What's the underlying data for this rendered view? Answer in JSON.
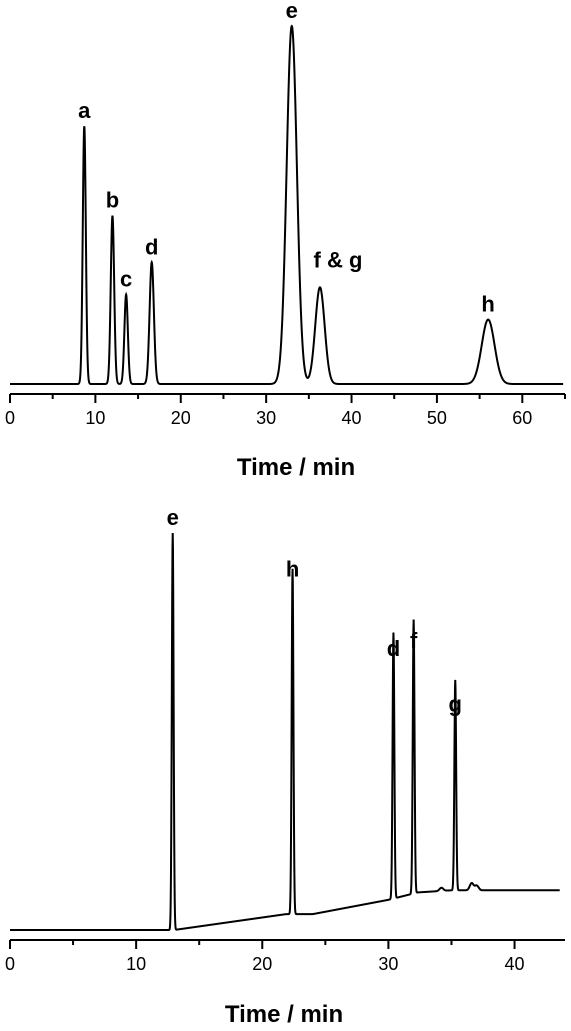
{
  "chart_data": [
    {
      "type": "line",
      "xlabel": "Time / min",
      "ylabel": "",
      "xlim": [
        0,
        65
      ],
      "ylim": [
        0,
        1.0
      ],
      "xticks": [
        0,
        10,
        20,
        30,
        40,
        50,
        60
      ],
      "grid": false,
      "baseline": 0.05,
      "peaks": [
        {
          "label": "a",
          "x": 8.7,
          "height": 0.72,
          "width": 0.18
        },
        {
          "label": "b",
          "x": 12.0,
          "height": 0.47,
          "width": 0.2
        },
        {
          "label": "c",
          "x": 13.6,
          "height": 0.25,
          "width": 0.2
        },
        {
          "label": "d",
          "x": 16.6,
          "height": 0.34,
          "width": 0.25
        },
        {
          "label": "e",
          "x": 33.0,
          "height": 1.0,
          "width": 0.6
        },
        {
          "label": "f & g",
          "x": 36.3,
          "height": 0.27,
          "width": 0.55
        },
        {
          "label": "h",
          "x": 56.0,
          "height": 0.18,
          "width": 0.75
        }
      ]
    },
    {
      "type": "line",
      "xlabel": "Time / min",
      "ylabel": "",
      "xlim": [
        0,
        44
      ],
      "ylim": [
        0,
        1.0
      ],
      "xticks": [
        0,
        10,
        20,
        30,
        40
      ],
      "grid": false,
      "baseline": 0.05,
      "peaks": [
        {
          "label": "e",
          "x": 12.9,
          "height": 1.0,
          "width": 0.07
        },
        {
          "label": "h",
          "x": 22.4,
          "height": 0.87,
          "width": 0.07
        },
        {
          "label": "d",
          "x": 30.4,
          "height": 0.67,
          "width": 0.07
        },
        {
          "label": "f",
          "x": 32.0,
          "height": 0.69,
          "width": 0.07
        },
        {
          "label": "g",
          "x": 35.3,
          "height": 0.53,
          "width": 0.07
        }
      ]
    }
  ]
}
